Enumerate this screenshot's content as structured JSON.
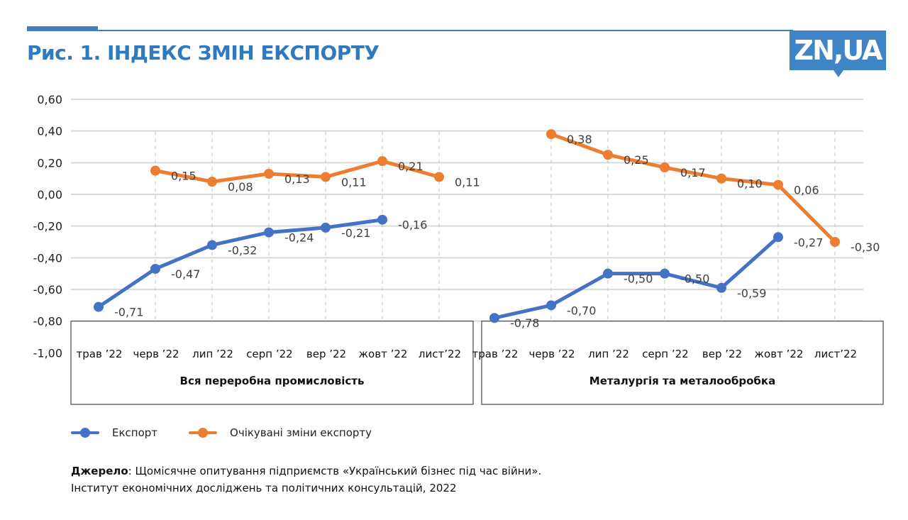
{
  "header": {
    "title": "Рис. 1. ІНДЕКС ЗМІН ЕКСПОРТУ",
    "logo_text": "ZN,UA",
    "accent_color": "#3f7fbf"
  },
  "chart_data": {
    "type": "line",
    "title": "Рис. 1. ІНДЕКС ЗМІН ЕКСПОРТУ",
    "ylim": [
      -1.0,
      0.6
    ],
    "yticks": [
      "0,60",
      "0,40",
      "0,20",
      "0,00",
      "-0,20",
      "-0,40",
      "-0,60",
      "-0,80",
      "-1,00"
    ],
    "ytick_values": [
      0.6,
      0.4,
      0.2,
      0.0,
      -0.2,
      -0.4,
      -0.6,
      -0.8,
      -1.0
    ],
    "grid": true,
    "legend_position": "bottom-left",
    "categories": [
      "трав ’22",
      "черв ’22",
      "лип ’22",
      "серп ’22",
      "вер ’22",
      "жовт ’22",
      "лист’22"
    ],
    "series_meta": [
      {
        "name": "Експорт",
        "color": "#4472c4"
      },
      {
        "name": "Очікувані зміни експорту",
        "color": "#ed7d31"
      }
    ],
    "panels": [
      {
        "group_label": "Вся переробна промисловість",
        "series": [
          {
            "name": "Експорт",
            "values": [
              -0.71,
              -0.47,
              -0.32,
              -0.24,
              -0.21,
              -0.16,
              null
            ],
            "labels": [
              "-0,71",
              "-0,47",
              "-0,32",
              "-0,24",
              "-0,21",
              "-0,16",
              null
            ]
          },
          {
            "name": "Очікувані зміни експорту",
            "values": [
              null,
              0.15,
              0.08,
              0.13,
              0.11,
              0.21,
              0.11
            ],
            "labels": [
              null,
              "0,15",
              "0,08",
              "0,13",
              "0,11",
              "0,21",
              "0,11"
            ]
          }
        ]
      },
      {
        "group_label": "Металургія та металообробка",
        "series": [
          {
            "name": "Експорт",
            "values": [
              -0.78,
              -0.7,
              -0.5,
              -0.5,
              -0.59,
              -0.27,
              null
            ],
            "labels": [
              "-0,78",
              "-0,70",
              "-0,50",
              "-0,50",
              "-0,59",
              "-0,27",
              null
            ]
          },
          {
            "name": "Очікувані зміни експорту",
            "values": [
              null,
              0.38,
              0.25,
              0.17,
              0.1,
              0.06,
              -0.3
            ],
            "labels": [
              null,
              "0,38",
              "0,25",
              "0,17",
              "0,10",
              "0,06",
              "-0,30"
            ]
          }
        ]
      }
    ]
  },
  "legend": {
    "items": [
      {
        "label": "Експорт",
        "color": "#4472c4"
      },
      {
        "label": "Очікувані зміни експорту",
        "color": "#ed7d31"
      }
    ]
  },
  "source": {
    "label": "Джерело",
    "line1": ": Щомісячне опитування підприємств «Український бізнес під час війни».",
    "line2": "Інститут економічних досліджень та політичних консультацій, 2022"
  }
}
